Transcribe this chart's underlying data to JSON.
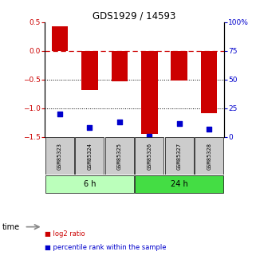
{
  "title": "GDS1929 / 14593",
  "samples": [
    "GSM85323",
    "GSM85324",
    "GSM85325",
    "GSM85326",
    "GSM85327",
    "GSM85328"
  ],
  "log2_ratio": [
    0.42,
    -0.68,
    -0.53,
    -1.45,
    -0.52,
    -1.08
  ],
  "percentile_rank": [
    20,
    8,
    13,
    1,
    12,
    7
  ],
  "ylim_left": [
    -1.5,
    0.5
  ],
  "ylim_right": [
    0,
    100
  ],
  "yticks_left": [
    0.5,
    0,
    -0.5,
    -1.0,
    -1.5
  ],
  "yticks_right": [
    100,
    75,
    50,
    25,
    0
  ],
  "groups": [
    {
      "label": "6 h",
      "indices": [
        0,
        1,
        2
      ],
      "color": "#bbffbb"
    },
    {
      "label": "24 h",
      "indices": [
        3,
        4,
        5
      ],
      "color": "#44dd44"
    }
  ],
  "bar_color": "#cc0000",
  "dot_color": "#0000cc",
  "hline_y": 0,
  "hline_color": "#cc0000",
  "dotted_lines": [
    -0.5,
    -1.0
  ],
  "dotted_color": "black",
  "bar_width": 0.55,
  "background_color": "#ffffff",
  "group_box_color": "#cccccc",
  "time_label": "time",
  "legend_items": [
    {
      "label": "log2 ratio",
      "color": "#cc0000"
    },
    {
      "label": "percentile rank within the sample",
      "color": "#0000cc"
    }
  ]
}
